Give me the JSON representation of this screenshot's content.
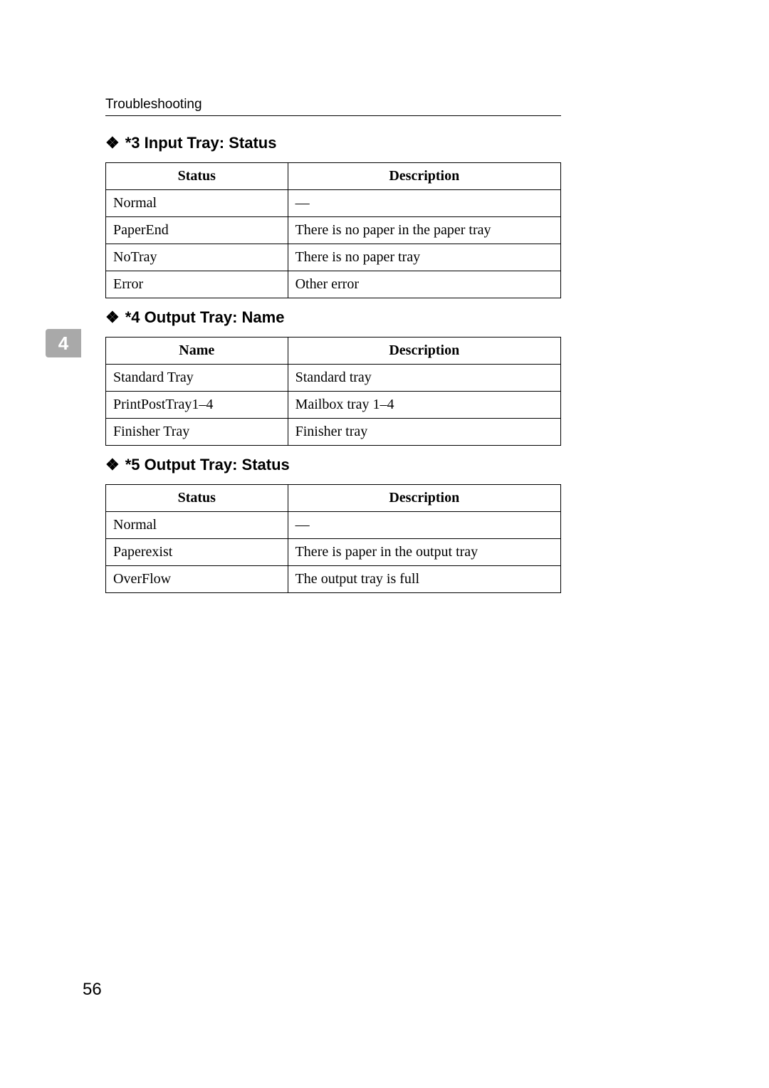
{
  "header": {
    "title": "Troubleshooting"
  },
  "tab": {
    "number": "4"
  },
  "footer": {
    "page_number": "56"
  },
  "sections": [
    {
      "bullet": "❖",
      "title": "*3 Input Tray: Status",
      "columns": [
        "Status",
        "Description"
      ],
      "rows": [
        [
          "Normal",
          "—"
        ],
        [
          "PaperEnd",
          "There is no paper in the paper tray"
        ],
        [
          "NoTray",
          "There is no paper tray"
        ],
        [
          "Error",
          "Other error"
        ]
      ]
    },
    {
      "bullet": "❖",
      "title": "*4 Output Tray: Name",
      "columns": [
        "Name",
        "Description"
      ],
      "rows": [
        [
          "Standard Tray",
          "Standard tray"
        ],
        [
          "PrintPostTray1–4",
          "Mailbox tray 1–4"
        ],
        [
          "Finisher Tray",
          "Finisher tray"
        ]
      ]
    },
    {
      "bullet": "❖",
      "title": "*5 Output Tray: Status",
      "columns": [
        "Status",
        "Description"
      ],
      "rows": [
        [
          "Normal",
          "—"
        ],
        [
          "Paperexist",
          "There is paper in the output tray"
        ],
        [
          "OverFlow",
          "The output tray is full"
        ]
      ]
    }
  ]
}
